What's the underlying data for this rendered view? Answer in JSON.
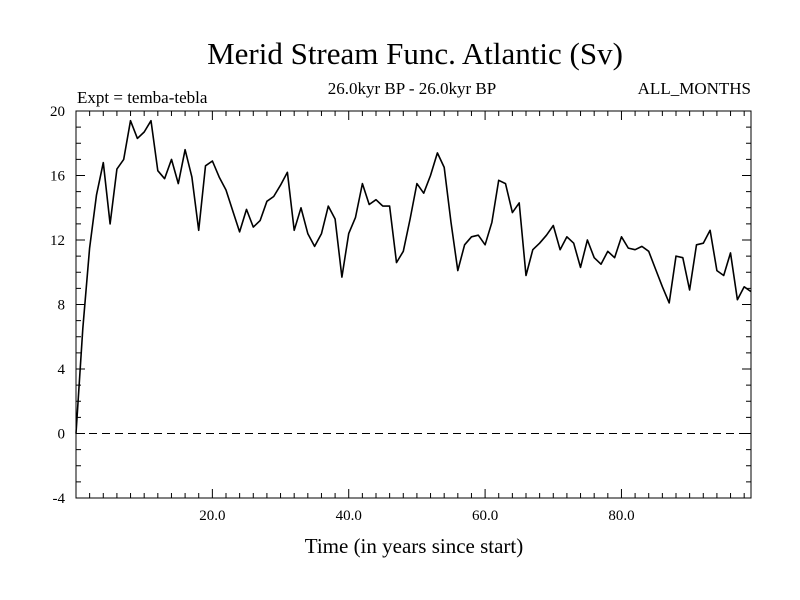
{
  "chart_data": {
    "type": "line",
    "title": "Merid Stream Func. Atlantic (Sv)",
    "subtitle_left": "Expt = temba-tebla",
    "subtitle_center": "26.0kyr BP - 26.0kyr BP",
    "subtitle_right": "ALL_MONTHS",
    "xlabel": "Time (in years since start)",
    "ylabel": "",
    "xlim": [
      0,
      99
    ],
    "ylim": [
      -4,
      20
    ],
    "x_ticks": [
      20,
      40,
      60,
      80
    ],
    "x_tick_labels": [
      "20.0",
      "40.0",
      "60.0",
      "80.0"
    ],
    "y_ticks": [
      -4,
      0,
      4,
      8,
      12,
      16,
      20
    ],
    "y_tick_labels": [
      "-4",
      "0",
      "4",
      "8",
      "12",
      "16",
      "20"
    ],
    "reference_line": {
      "y": 0,
      "style": "dashed"
    },
    "series": [
      {
        "name": "Merid Stream Func. Atlantic",
        "x": [
          0,
          1,
          2,
          3,
          4,
          5,
          6,
          7,
          8,
          9,
          10,
          11,
          12,
          13,
          14,
          15,
          16,
          17,
          18,
          19,
          20,
          21,
          22,
          23,
          24,
          25,
          26,
          27,
          28,
          29,
          30,
          31,
          32,
          33,
          34,
          35,
          36,
          37,
          38,
          39,
          40,
          41,
          42,
          43,
          44,
          45,
          46,
          47,
          48,
          49,
          50,
          51,
          52,
          53,
          54,
          55,
          56,
          57,
          58,
          59,
          60,
          61,
          62,
          63,
          64,
          65,
          66,
          67,
          68,
          69,
          70,
          71,
          72,
          73,
          74,
          75,
          76,
          77,
          78,
          79,
          80,
          81,
          82,
          83,
          84,
          85,
          86,
          87,
          88,
          89,
          90,
          91,
          92,
          93,
          94,
          95,
          96,
          97,
          98,
          99
        ],
        "values": [
          0.0,
          6.5,
          11.5,
          14.8,
          16.8,
          13.0,
          16.4,
          17.0,
          19.4,
          18.3,
          18.7,
          19.4,
          16.3,
          15.8,
          17.0,
          15.5,
          17.6,
          15.9,
          12.6,
          16.6,
          16.9,
          15.9,
          15.1,
          13.8,
          12.5,
          13.9,
          12.8,
          13.2,
          14.4,
          14.7,
          15.4,
          16.2,
          12.6,
          14.0,
          12.4,
          11.6,
          12.4,
          14.1,
          13.3,
          9.7,
          12.4,
          13.4,
          15.5,
          14.2,
          14.5,
          14.1,
          14.1,
          10.6,
          11.3,
          13.3,
          15.5,
          14.9,
          16.0,
          17.4,
          16.5,
          13.1,
          10.1,
          11.7,
          12.2,
          12.3,
          11.7,
          13.1,
          15.7,
          15.5,
          13.7,
          14.3,
          9.8,
          11.4,
          11.8,
          12.3,
          12.9,
          11.4,
          12.2,
          11.8,
          10.3,
          12.0,
          10.9,
          10.5,
          11.3,
          10.9,
          12.2,
          11.5,
          11.4,
          11.6,
          11.3,
          10.2,
          9.1,
          8.1,
          11.0,
          10.9,
          8.9,
          11.7,
          11.8,
          12.6,
          10.1,
          9.8,
          11.2,
          8.3,
          9.1,
          8.8
        ]
      }
    ]
  }
}
